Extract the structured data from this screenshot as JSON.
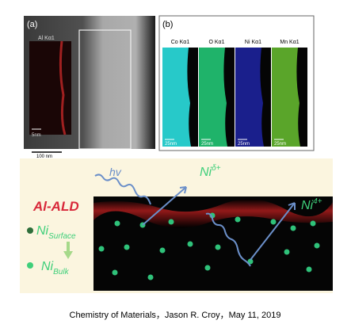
{
  "panel_a": {
    "label": "(a)",
    "map_label": "Al Kα1",
    "inset_scale": "5nm",
    "main_scale": "100 nm"
  },
  "panel_b": {
    "label": "(b)",
    "maps": [
      {
        "label": "Co Kα1",
        "scale": "25nm"
      },
      {
        "label": "O Kα1",
        "scale": "25nm"
      },
      {
        "label": "Ni Kα1",
        "scale": "25nm"
      },
      {
        "label": "Mn Kα1",
        "scale": "25nm"
      }
    ]
  },
  "schematic": {
    "hv": "hv",
    "ni_delta": {
      "base": "Ni",
      "sup": "δ+"
    },
    "ni_4": {
      "base": "Ni",
      "sup": "4+"
    },
    "al_ald": "Al-ALD",
    "ni_surface": {
      "base": "Ni",
      "sub": "Surface"
    },
    "ni_bulk": {
      "base": "Ni",
      "sub": "Bulk"
    }
  },
  "caption": "Chemistry of Materials，Jason R. Croy，May 11, 2019"
}
